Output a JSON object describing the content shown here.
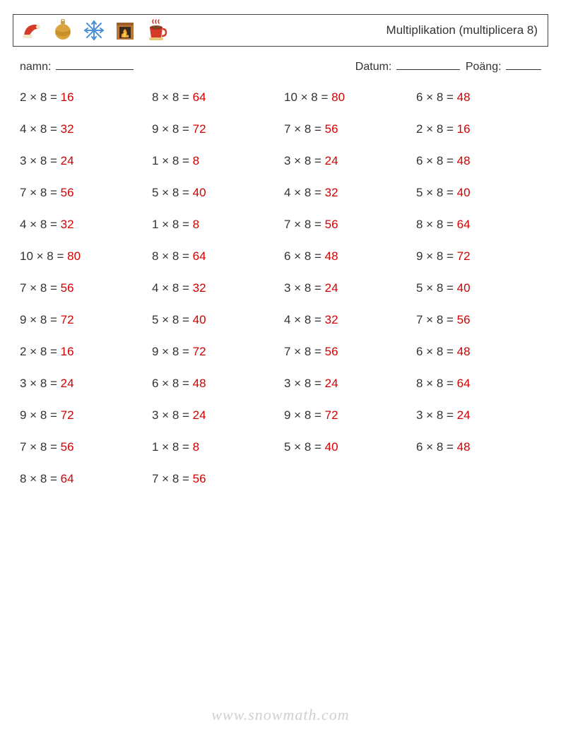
{
  "header": {
    "title": "Multiplikation (multiplicera 8)",
    "icons": [
      "santa-hat-icon",
      "ornament-icon",
      "snowflake-icon",
      "fireplace-icon",
      "cocoa-icon"
    ]
  },
  "meta": {
    "name_label": "namn:",
    "date_label": "Datum:",
    "score_label": "Poäng:"
  },
  "styling": {
    "question_color": "#333333",
    "answer_color": "#d40000",
    "border_color": "#444444",
    "background_color": "#ffffff",
    "font_size_problem": 17,
    "watermark_color": "rgba(120,120,120,0.35)",
    "columns": 4,
    "rows": 13,
    "row_gap": 25
  },
  "problems": [
    {
      "a": 2,
      "b": 8,
      "ans": 16
    },
    {
      "a": 8,
      "b": 8,
      "ans": 64
    },
    {
      "a": 10,
      "b": 8,
      "ans": 80
    },
    {
      "a": 6,
      "b": 8,
      "ans": 48
    },
    {
      "a": 4,
      "b": 8,
      "ans": 32
    },
    {
      "a": 9,
      "b": 8,
      "ans": 72
    },
    {
      "a": 7,
      "b": 8,
      "ans": 56
    },
    {
      "a": 2,
      "b": 8,
      "ans": 16
    },
    {
      "a": 3,
      "b": 8,
      "ans": 24
    },
    {
      "a": 1,
      "b": 8,
      "ans": 8
    },
    {
      "a": 3,
      "b": 8,
      "ans": 24
    },
    {
      "a": 6,
      "b": 8,
      "ans": 48
    },
    {
      "a": 7,
      "b": 8,
      "ans": 56
    },
    {
      "a": 5,
      "b": 8,
      "ans": 40
    },
    {
      "a": 4,
      "b": 8,
      "ans": 32
    },
    {
      "a": 5,
      "b": 8,
      "ans": 40
    },
    {
      "a": 4,
      "b": 8,
      "ans": 32
    },
    {
      "a": 1,
      "b": 8,
      "ans": 8
    },
    {
      "a": 7,
      "b": 8,
      "ans": 56
    },
    {
      "a": 8,
      "b": 8,
      "ans": 64
    },
    {
      "a": 10,
      "b": 8,
      "ans": 80
    },
    {
      "a": 8,
      "b": 8,
      "ans": 64
    },
    {
      "a": 6,
      "b": 8,
      "ans": 48
    },
    {
      "a": 9,
      "b": 8,
      "ans": 72
    },
    {
      "a": 7,
      "b": 8,
      "ans": 56
    },
    {
      "a": 4,
      "b": 8,
      "ans": 32
    },
    {
      "a": 3,
      "b": 8,
      "ans": 24
    },
    {
      "a": 5,
      "b": 8,
      "ans": 40
    },
    {
      "a": 9,
      "b": 8,
      "ans": 72
    },
    {
      "a": 5,
      "b": 8,
      "ans": 40
    },
    {
      "a": 4,
      "b": 8,
      "ans": 32
    },
    {
      "a": 7,
      "b": 8,
      "ans": 56
    },
    {
      "a": 2,
      "b": 8,
      "ans": 16
    },
    {
      "a": 9,
      "b": 8,
      "ans": 72
    },
    {
      "a": 7,
      "b": 8,
      "ans": 56
    },
    {
      "a": 6,
      "b": 8,
      "ans": 48
    },
    {
      "a": 3,
      "b": 8,
      "ans": 24
    },
    {
      "a": 6,
      "b": 8,
      "ans": 48
    },
    {
      "a": 3,
      "b": 8,
      "ans": 24
    },
    {
      "a": 8,
      "b": 8,
      "ans": 64
    },
    {
      "a": 9,
      "b": 8,
      "ans": 72
    },
    {
      "a": 3,
      "b": 8,
      "ans": 24
    },
    {
      "a": 9,
      "b": 8,
      "ans": 72
    },
    {
      "a": 3,
      "b": 8,
      "ans": 24
    },
    {
      "a": 7,
      "b": 8,
      "ans": 56
    },
    {
      "a": 1,
      "b": 8,
      "ans": 8
    },
    {
      "a": 5,
      "b": 8,
      "ans": 40
    },
    {
      "a": 6,
      "b": 8,
      "ans": 48
    },
    {
      "a": 8,
      "b": 8,
      "ans": 64
    },
    {
      "a": 7,
      "b": 8,
      "ans": 56
    }
  ],
  "watermark": "www.snowmath.com"
}
